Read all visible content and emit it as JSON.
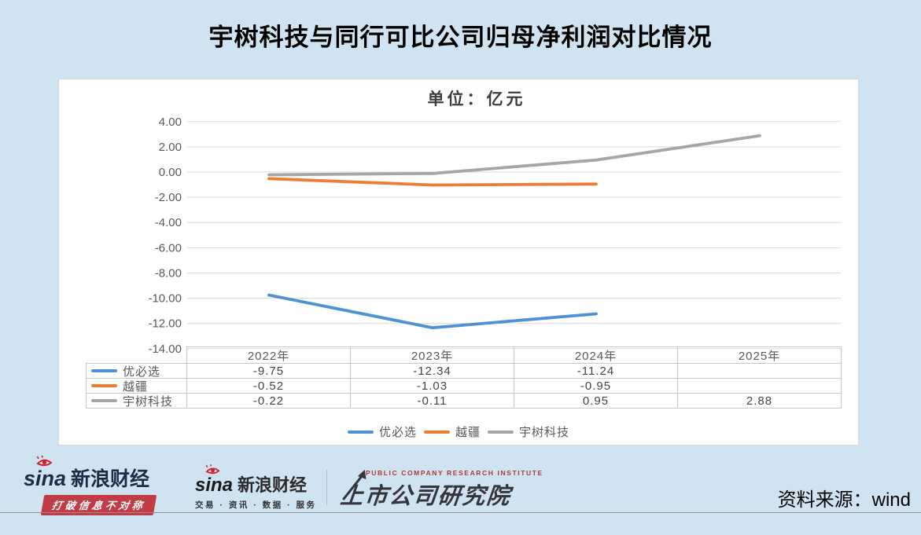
{
  "page": {
    "title": "宇树科技与同行可比公司归母净利润对比情况",
    "background_color": "#cfe3f1"
  },
  "chart_data": {
    "type": "line",
    "title": "单位：亿元",
    "categories": [
      "2022年",
      "2023年",
      "2024年",
      "2025年"
    ],
    "series": [
      {
        "name": "优必选",
        "color": "#4e92d5",
        "values": [
          -9.75,
          -12.34,
          -11.24,
          null
        ],
        "table": [
          "-9.75",
          "-12.34",
          "-11.24",
          ""
        ]
      },
      {
        "name": "越疆",
        "color": "#ed7d31",
        "values": [
          -0.52,
          -1.03,
          -0.95,
          null
        ],
        "table": [
          "-0.52",
          "-1.03",
          "-0.95",
          ""
        ]
      },
      {
        "name": "宇树科技",
        "color": "#a6a6a6",
        "values": [
          -0.22,
          -0.11,
          0.95,
          2.88
        ],
        "table": [
          "-0.22",
          "-0.11",
          "0.95",
          "2.88"
        ]
      }
    ],
    "ylim": [
      -14,
      4
    ],
    "ytick_step": 2,
    "yticks": [
      "4.00",
      "2.00",
      "0.00",
      "-2.00",
      "-4.00",
      "-6.00",
      "-8.00",
      "-10.00",
      "-12.00",
      "-14.00"
    ],
    "grid": true,
    "gridline_color": "#d9d9d9",
    "legend_position": "bottom",
    "legend_labels": [
      "优必选",
      "越疆",
      "宇树科技"
    ]
  },
  "footer": {
    "source": "资料来源：wind",
    "logo1": {
      "icon": "sina-eye-icon",
      "brand": "sina",
      "name": "新浪财经",
      "slogan": "打破信息不对称",
      "slogan_bg": "#c13c46"
    },
    "logo2": {
      "icon": "sina-eye-icon",
      "brand": "sina",
      "name": "新浪财经",
      "tagline": "交易 · 资讯 · 数据 · 服务"
    },
    "institute": {
      "icon": "arrow-up-right-icon",
      "en": "PUBLIC COMPANY RESEARCH INSTITUTE",
      "cn": "上市公司研究院"
    }
  }
}
